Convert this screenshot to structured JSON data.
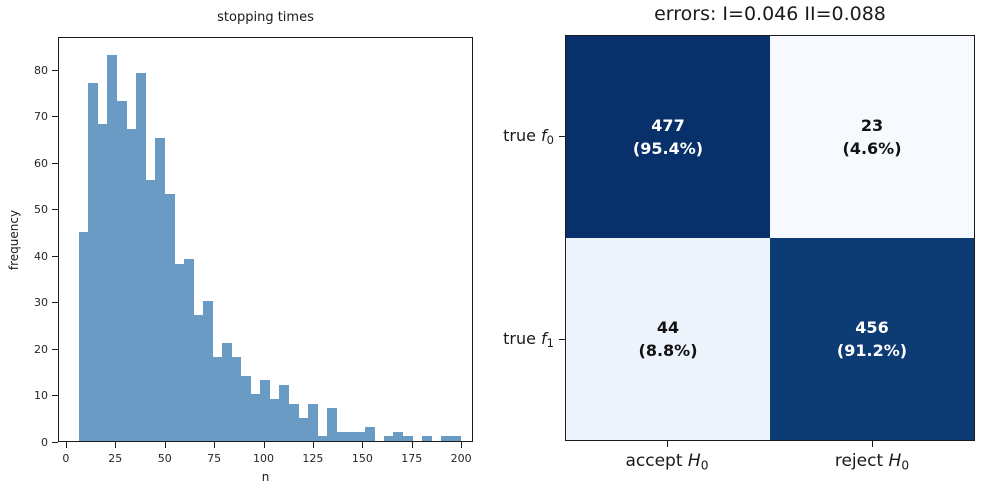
{
  "figure": {
    "background": "#ffffff"
  },
  "histogram": {
    "title": "stopping times",
    "xlabel": "n",
    "ylabel": "frequency"
  },
  "matrix": {
    "title": "errors: I=0.046 II=0.088",
    "row_labels": [
      {
        "text": "true ",
        "var": "f",
        "sub": "0"
      },
      {
        "text": "true ",
        "var": "f",
        "sub": "1"
      }
    ],
    "col_labels": [
      {
        "text": "accept ",
        "var": "H",
        "sub": "0"
      },
      {
        "text": "reject ",
        "var": "H",
        "sub": "0"
      }
    ]
  },
  "chart_data": [
    {
      "type": "bar",
      "subtype": "histogram",
      "title": "stopping times",
      "xlabel": "n",
      "ylabel": "frequency",
      "xlim": [
        -4,
        206
      ],
      "ylim": [
        0,
        87
      ],
      "xticks": [
        0,
        25,
        50,
        75,
        100,
        125,
        150,
        175,
        200
      ],
      "yticks": [
        0,
        10,
        20,
        30,
        40,
        50,
        60,
        70,
        80
      ],
      "bin_start": 6.0,
      "bin_width": 4.825,
      "counts": [
        45,
        77,
        68,
        83,
        73,
        67,
        79,
        56,
        65,
        53,
        38,
        39,
        27,
        30,
        18,
        21,
        18,
        14,
        10,
        13,
        9,
        12,
        8,
        5,
        8,
        1,
        7,
        2,
        2,
        2,
        3,
        0,
        1,
        2,
        1,
        0,
        1,
        0,
        1,
        1
      ],
      "bar_color": "#699bc5",
      "grid": false
    },
    {
      "type": "heatmap",
      "title": "errors: I=0.046 II=0.088",
      "type_I_error": 0.046,
      "type_II_error": 0.088,
      "rows": [
        "true f0",
        "true f1"
      ],
      "cols": [
        "accept H0",
        "reject H0"
      ],
      "cells": [
        [
          {
            "count": "477",
            "pct": "(95.4%)",
            "bg": "#08306b",
            "fg": "#ffffff"
          },
          {
            "count": "23",
            "pct": "(4.6%)",
            "bg": "#f6fafe",
            "fg": "#111111"
          }
        ],
        [
          {
            "count": "44",
            "pct": "(8.8%)",
            "bg": "#edf4fb",
            "fg": "#111111"
          },
          {
            "count": "456",
            "pct": "(91.2%)",
            "bg": "#0d3c75",
            "fg": "#ffffff"
          }
        ]
      ],
      "legend": "none"
    }
  ]
}
